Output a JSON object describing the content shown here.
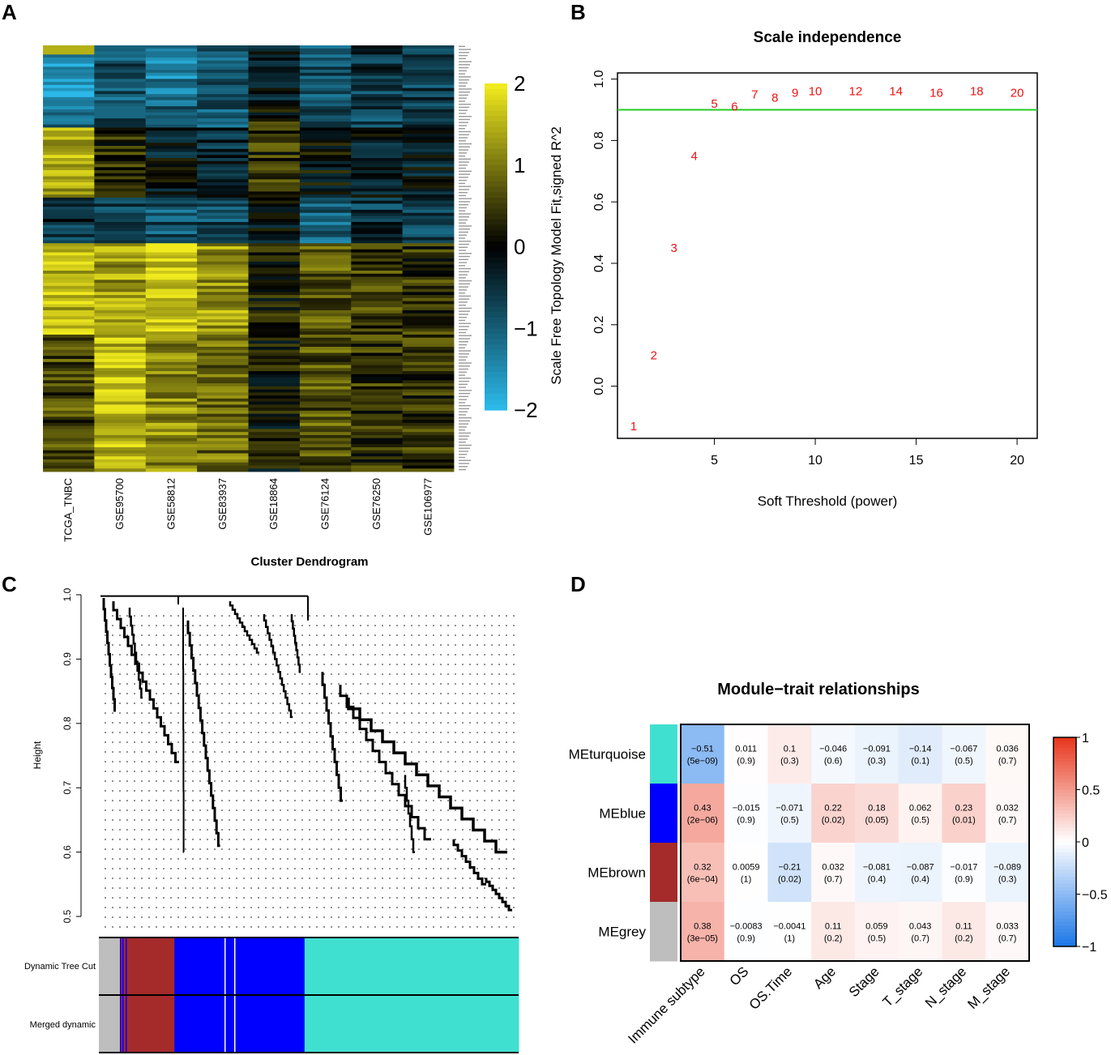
{
  "panels": {
    "a": "A",
    "b": "B",
    "c": "C",
    "d": "D"
  },
  "chart_data": [
    {
      "id": "A",
      "type": "heatmap",
      "title": "",
      "columns": [
        "TCGA_TNBC",
        "GSE95700",
        "GSE58812",
        "GSE83937",
        "GSE18864",
        "GSE76124",
        "GSE76250",
        "GSE106977"
      ],
      "row_count": 140,
      "color_scale": {
        "min": -2,
        "max": 2,
        "ticks": [
          "2",
          "1",
          "0",
          "−1",
          "−2"
        ],
        "low": "#2bb8e8",
        "mid": "#000000",
        "high": "#f0ea1e"
      }
    },
    {
      "id": "B",
      "type": "scatter",
      "title": "Scale independence",
      "xlabel": "Soft Threshold (power)",
      "ylabel": "Scale Free Topology Model Fit,signed R^2",
      "xlim": [
        0.2,
        21
      ],
      "ylim": [
        -0.17,
        1.02
      ],
      "xticks": [
        5,
        10,
        15,
        20
      ],
      "yticks": [
        0.0,
        0.2,
        0.4,
        0.6,
        0.8,
        1.0
      ],
      "ytick_labels": [
        "0.0",
        "0.2",
        "0.4",
        "0.6",
        "0.8",
        "1.0"
      ],
      "hline": 0.9,
      "hline_color": "#22cc22",
      "point_color": "#ee1111",
      "points": [
        {
          "x": 1,
          "y": -0.13,
          "label": "1"
        },
        {
          "x": 2,
          "y": 0.1,
          "label": "2"
        },
        {
          "x": 3,
          "y": 0.45,
          "label": "3"
        },
        {
          "x": 4,
          "y": 0.75,
          "label": "4"
        },
        {
          "x": 5,
          "y": 0.92,
          "label": "5"
        },
        {
          "x": 6,
          "y": 0.91,
          "label": "6"
        },
        {
          "x": 7,
          "y": 0.95,
          "label": "7"
        },
        {
          "x": 8,
          "y": 0.94,
          "label": "8"
        },
        {
          "x": 9,
          "y": 0.955,
          "label": "9"
        },
        {
          "x": 10,
          "y": 0.96,
          "label": "10"
        },
        {
          "x": 12,
          "y": 0.96,
          "label": "12"
        },
        {
          "x": 14,
          "y": 0.96,
          "label": "14"
        },
        {
          "x": 16,
          "y": 0.955,
          "label": "16"
        },
        {
          "x": 18,
          "y": 0.96,
          "label": "18"
        },
        {
          "x": 20,
          "y": 0.955,
          "label": "20"
        }
      ]
    },
    {
      "id": "C",
      "type": "dendrogram",
      "title": "Cluster Dendrogram",
      "ylabel": "Height",
      "ylim": [
        0.5,
        1.0
      ],
      "yticks": [
        "0.5",
        "0.6",
        "0.7",
        "0.8",
        "0.9",
        "1.0"
      ],
      "color_rows": [
        "Dynamic Tree Cut",
        "Merged dynamic"
      ],
      "module_bands": [
        {
          "module": "grey",
          "color": "#bebebe",
          "share": 0.05
        },
        {
          "module": "brown",
          "color": "#a52a2a",
          "share": 0.13
        },
        {
          "module": "blue",
          "color": "#0000ff",
          "share": 0.31
        },
        {
          "module": "turquoise",
          "color": "#40e0d0",
          "share": 0.51
        }
      ]
    },
    {
      "id": "D",
      "type": "heatmap",
      "title": "Module−trait relationships",
      "modules": [
        "MEturquoise",
        "MEblue",
        "MEbrown",
        "MEgrey"
      ],
      "module_colors": [
        "#40e0d0",
        "#0000ff",
        "#a52a2a",
        "#bebebe"
      ],
      "traits": [
        "Immune subtype",
        "OS",
        "OS.Time",
        "Age",
        "Stage",
        "T_stage",
        "N_stage",
        "M_stage"
      ],
      "correlations": [
        [
          -0.51,
          0.011,
          0.1,
          -0.046,
          -0.091,
          -0.14,
          -0.067,
          0.036
        ],
        [
          0.43,
          -0.015,
          -0.071,
          0.22,
          0.18,
          0.062,
          0.23,
          0.032
        ],
        [
          0.32,
          0.0059,
          -0.21,
          0.032,
          -0.081,
          -0.087,
          -0.017,
          -0.089
        ],
        [
          0.38,
          -0.0083,
          -0.0041,
          0.11,
          0.059,
          0.043,
          0.11,
          0.033
        ]
      ],
      "cell_text": [
        [
          "−0.51",
          "0.011",
          "0.1",
          "−0.046",
          "−0.091",
          "−0.14",
          "−0.067",
          "0.036"
        ],
        [
          "0.43",
          "−0.015",
          "−0.071",
          "0.22",
          "0.18",
          "0.062",
          "0.23",
          "0.032"
        ],
        [
          "0.32",
          "0.0059",
          "−0.21",
          "0.032",
          "−0.081",
          "−0.087",
          "−0.017",
          "−0.089"
        ],
        [
          "0.38",
          "−0.0083",
          "−0.0041",
          "0.11",
          "0.059",
          "0.043",
          "0.11",
          "0.033"
        ]
      ],
      "pvalues": [
        [
          "(5e−09)",
          "(0.9)",
          "(0.3)",
          "(0.6)",
          "(0.3)",
          "(0.1)",
          "(0.5)",
          "(0.7)"
        ],
        [
          "(2e−06)",
          "(0.9)",
          "(0.5)",
          "(0.02)",
          "(0.05)",
          "(0.5)",
          "(0.01)",
          "(0.7)"
        ],
        [
          "(6e−04)",
          "(1)",
          "(0.02)",
          "(0.7)",
          "(0.4)",
          "(0.4)",
          "(0.9)",
          "(0.3)"
        ],
        [
          "(3e−05)",
          "(0.9)",
          "(1)",
          "(0.2)",
          "(0.5)",
          "(0.7)",
          "(0.2)",
          "(0.7)"
        ]
      ],
      "color_scale": {
        "min": -1,
        "max": 1,
        "ticks": [
          "1",
          "0.5",
          "0",
          "−0.5",
          "−1"
        ],
        "low": "#1e78e8",
        "mid": "#ffffff",
        "high": "#e8381e"
      }
    }
  ]
}
